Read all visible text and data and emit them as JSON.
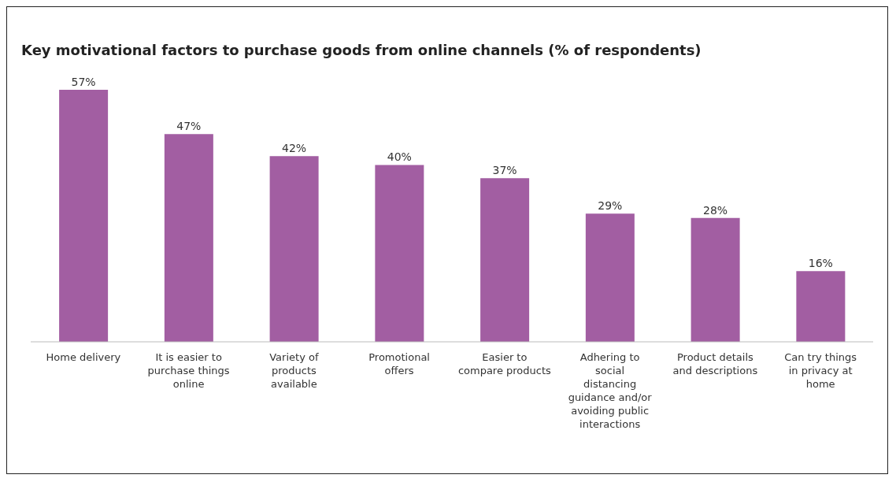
{
  "chart_data": {
    "type": "bar",
    "title": "Key motivational factors to purchase goods from online channels (% of respondents)",
    "categories": [
      "Home delivery",
      "It is easier to purchase things online",
      "Variety of products available",
      "Promotional offers",
      "Easier to compare products",
      "Adhering to social distancing guidance and/or avoiding public interactions",
      "Product details and descriptions",
      "Can try things in privacy at home"
    ],
    "values": [
      57,
      47,
      42,
      40,
      37,
      29,
      28,
      16
    ],
    "value_labels": [
      "57%",
      "47%",
      "42%",
      "40%",
      "37%",
      "29%",
      "28%",
      "16%"
    ],
    "color": "#a25ea2"
  }
}
